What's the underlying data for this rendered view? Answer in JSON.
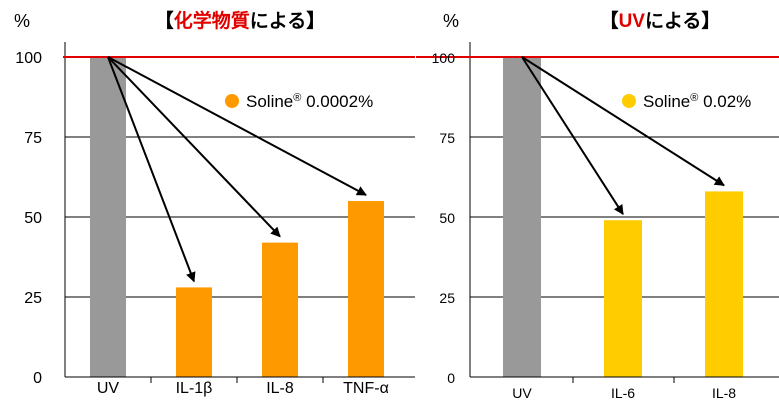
{
  "chart_data": [
    {
      "type": "bar",
      "title_parts": [
        {
          "text": "【",
          "highlight": false
        },
        {
          "text": "化学物質",
          "highlight": true
        },
        {
          "text": "による】",
          "highlight": false
        }
      ],
      "ylabel": "%",
      "ylim": [
        0,
        100
      ],
      "yticks": [
        0,
        25,
        50,
        75,
        100
      ],
      "reference_line": 100,
      "categories": [
        "UV",
        "IL-1β",
        "IL-8",
        "TNF-α"
      ],
      "values": [
        100,
        28,
        42,
        55
      ],
      "bar_colors": [
        "#999999",
        "#ff9900",
        "#ff9900",
        "#ff9900"
      ],
      "legend": {
        "label": "Soline",
        "reg": "®",
        "suffix": " 0.0002%",
        "color": "#ff9900",
        "placement": "top-right"
      },
      "arrows": {
        "from": "UV",
        "to": [
          "IL-1β",
          "IL-8",
          "TNF-α"
        ]
      }
    },
    {
      "type": "bar",
      "title_parts": [
        {
          "text": "【",
          "highlight": false
        },
        {
          "text": "UV",
          "highlight": true
        },
        {
          "text": "による】",
          "highlight": false
        }
      ],
      "ylabel": "%",
      "ylim": [
        0,
        100
      ],
      "yticks": [
        0,
        25,
        50,
        75,
        100
      ],
      "reference_line": 100,
      "categories": [
        "UV",
        "IL-6",
        "IL-8"
      ],
      "values": [
        100,
        49,
        58
      ],
      "bar_colors": [
        "#999999",
        "#ffcc00",
        "#ffcc00"
      ],
      "legend": {
        "label": "Soline",
        "reg": "®",
        "suffix": " 0.02%",
        "color": "#ffcc00",
        "placement": "top-right"
      },
      "arrows": {
        "from": "UV",
        "to": [
          "IL-6",
          "IL-8"
        ]
      }
    }
  ],
  "colors": {
    "reference_line": "#e00000",
    "axis": "#000000",
    "grid": "#000000",
    "arrow": "#000000"
  }
}
